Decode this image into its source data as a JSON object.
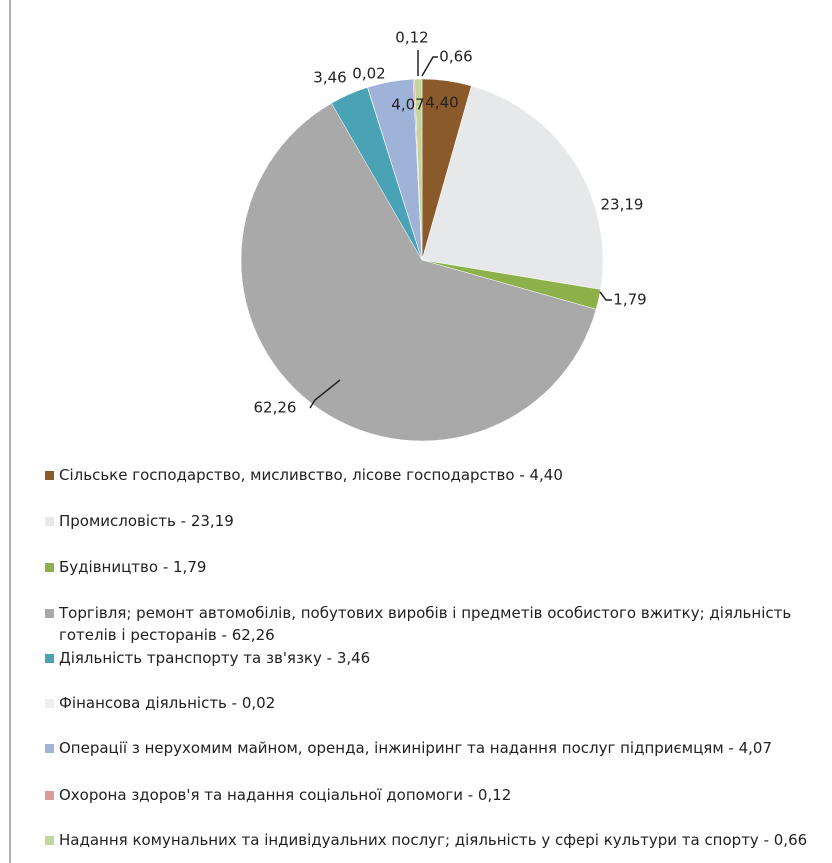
{
  "chart_data": {
    "type": "pie",
    "categories": [
      "Сільське господарство, мисливство, лісове господарство - 4,40",
      "Промисловість - 23,19",
      "Будівництво - 1,79",
      "Торгівля; ремонт автомобілів, побутових виробів і предметів особистого вжитку; діяльність готелів і ресторанів - 62,26",
      "Діяльність транспорту та зв'язку - 3,46",
      "Фінансова діяльність - 0,02",
      "Операції з нерухомим майном, оренда, інжиніринг та надання послуг підприємцям - 4,07",
      "Охорона здоров'я та надання соціальної допомоги - 0,12",
      "Надання комунальних та індивідуальних послуг; діяльність у сфері культури та спорту - 0,66"
    ],
    "values": [
      4.4,
      23.19,
      1.79,
      62.26,
      3.46,
      0.02,
      4.07,
      0.12,
      0.66
    ],
    "value_labels": [
      "4,40",
      "23,19",
      "1,79",
      "62,26",
      "3,46",
      "0,02",
      "4,07",
      "0,12",
      "0,66"
    ],
    "colors": [
      "#8b5a2b",
      "#e6e8ea",
      "#8db04a",
      "#a9a9a9",
      "#4aa3b5",
      "#efefef",
      "#9fb2d8",
      "#d99a9a",
      "#c2d69b"
    ]
  }
}
